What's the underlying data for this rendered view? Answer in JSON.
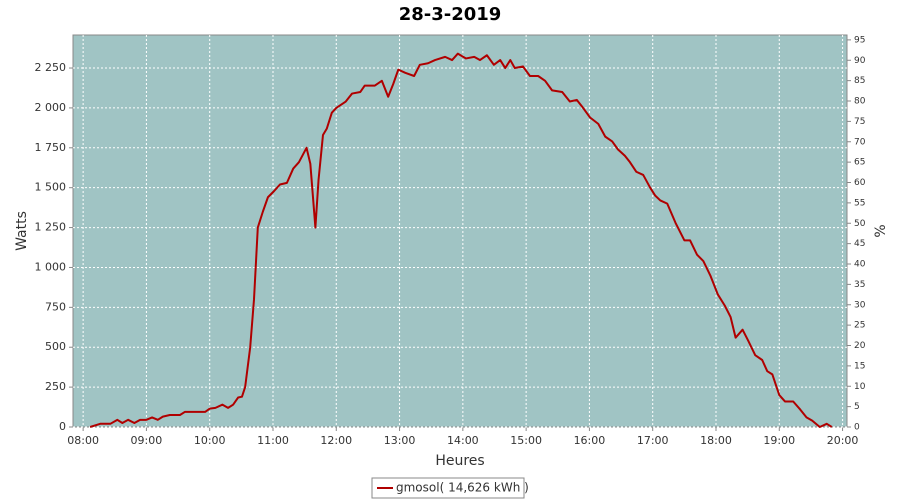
{
  "chart_data": {
    "type": "line",
    "title": "28-3-2019",
    "x_label": "Heures",
    "y_label": "Watts",
    "y2_label": "%",
    "xlim": [
      7.84,
      20.07
    ],
    "xticks": [
      {
        "value": 8,
        "label": "08:00"
      },
      {
        "value": 9,
        "label": "09:00"
      },
      {
        "value": 10,
        "label": "10:00"
      },
      {
        "value": 11,
        "label": "11:00"
      },
      {
        "value": 12,
        "label": "12:00"
      },
      {
        "value": 13,
        "label": "13:00"
      },
      {
        "value": 14,
        "label": "14:00"
      },
      {
        "value": 15,
        "label": "15:00"
      },
      {
        "value": 16,
        "label": "16:00"
      },
      {
        "value": 17,
        "label": "17:00"
      },
      {
        "value": 18,
        "label": "18:00"
      },
      {
        "value": 19,
        "label": "19:00"
      },
      {
        "value": 20,
        "label": "20:00"
      }
    ],
    "ylim": [
      0,
      2457
    ],
    "yticks": [
      0,
      250,
      500,
      750,
      {
        "value": 1000,
        "label": "1 000"
      },
      {
        "value": 1250,
        "label": "1 250"
      },
      {
        "value": 1500,
        "label": "1 500"
      },
      {
        "value": 1750,
        "label": "1 750"
      },
      {
        "value": 2000,
        "label": "2 000"
      },
      {
        "value": 2250,
        "label": "2 250"
      }
    ],
    "y2lim": [
      0,
      96.2
    ],
    "y2ticks": [
      0,
      5,
      10,
      15,
      20,
      25,
      30,
      35,
      40,
      45,
      50,
      55,
      60,
      65,
      70,
      75,
      80,
      85,
      90,
      95
    ],
    "grid": true,
    "background": "#a0c4c4",
    "legend": "bottom",
    "x": [
      8.11,
      8.27,
      8.43,
      8.54,
      8.62,
      8.71,
      8.81,
      8.9,
      9.0,
      9.09,
      9.18,
      9.26,
      9.37,
      9.53,
      9.61,
      9.93,
      10.0,
      10.09,
      10.2,
      10.29,
      10.37,
      10.45,
      10.51,
      10.56,
      10.64,
      10.7,
      10.76,
      10.84,
      10.92,
      11.02,
      11.11,
      11.22,
      11.32,
      11.41,
      11.53,
      11.59,
      11.67,
      11.72,
      11.79,
      11.85,
      11.93,
      12.0,
      12.15,
      12.25,
      12.38,
      12.45,
      12.61,
      12.72,
      12.82,
      12.9,
      12.98,
      13.09,
      13.23,
      13.32,
      13.45,
      13.56,
      13.72,
      13.83,
      13.92,
      14.05,
      14.18,
      14.27,
      14.38,
      14.49,
      14.59,
      14.67,
      14.75,
      14.82,
      14.95,
      15.06,
      15.19,
      15.3,
      15.41,
      15.57,
      15.69,
      15.8,
      15.9,
      16.01,
      16.14,
      16.25,
      16.36,
      16.45,
      16.56,
      16.64,
      16.74,
      16.85,
      16.96,
      17.04,
      17.12,
      17.23,
      17.36,
      17.5,
      17.59,
      17.7,
      17.8,
      17.91,
      18.03,
      18.14,
      18.23,
      18.31,
      18.42,
      18.51,
      18.62,
      18.73,
      18.81,
      18.89,
      19.0,
      19.09,
      19.22,
      19.33,
      19.43,
      19.52,
      19.64,
      19.75,
      19.83
    ],
    "series": [
      {
        "name": "gmosol( 14,626 kWh )",
        "color": "#b00000",
        "values": [
          0,
          20,
          20,
          45,
          25,
          45,
          25,
          45,
          45,
          60,
          45,
          65,
          75,
          75,
          95,
          95,
          115,
          120,
          140,
          120,
          140,
          185,
          190,
          250,
          500,
          800,
          1250,
          1350,
          1440,
          1480,
          1520,
          1530,
          1620,
          1660,
          1750,
          1650,
          1250,
          1550,
          1830,
          1870,
          1970,
          2000,
          2040,
          2090,
          2100,
          2140,
          2140,
          2170,
          2070,
          2150,
          2240,
          2220,
          2200,
          2270,
          2280,
          2300,
          2320,
          2300,
          2340,
          2310,
          2320,
          2300,
          2330,
          2270,
          2300,
          2250,
          2300,
          2250,
          2260,
          2200,
          2200,
          2170,
          2110,
          2100,
          2040,
          2050,
          2000,
          1940,
          1900,
          1820,
          1790,
          1740,
          1700,
          1660,
          1600,
          1580,
          1500,
          1450,
          1420,
          1400,
          1280,
          1170,
          1170,
          1080,
          1040,
          950,
          830,
          760,
          690,
          560,
          610,
          540,
          450,
          420,
          350,
          330,
          200,
          160,
          160,
          110,
          60,
          40,
          0,
          20,
          0
        ]
      }
    ]
  }
}
